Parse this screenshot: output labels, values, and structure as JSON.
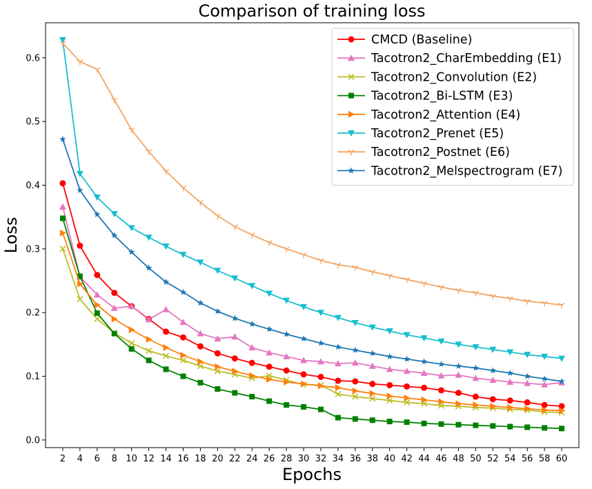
{
  "chart_data": {
    "type": "line",
    "title": "Comparison of training loss",
    "xlabel": "Epochs",
    "ylabel": "Loss",
    "xlim": [
      0,
      62
    ],
    "ylim": [
      -0.012,
      0.655
    ],
    "x_ticks": [
      2,
      4,
      6,
      8,
      10,
      12,
      14,
      16,
      18,
      20,
      22,
      24,
      26,
      28,
      30,
      32,
      34,
      36,
      38,
      40,
      42,
      44,
      46,
      48,
      50,
      52,
      54,
      56,
      58,
      60
    ],
    "y_ticks": [
      0.0,
      0.1,
      0.2,
      0.3,
      0.4,
      0.5,
      0.6
    ],
    "y_tick_labels": [
      "0.0",
      "0.1",
      "0.2",
      "0.3",
      "0.4",
      "0.5",
      "0.6"
    ],
    "legend_position": "top-right",
    "x": [
      2,
      4,
      6,
      8,
      10,
      12,
      14,
      16,
      18,
      20,
      22,
      24,
      26,
      28,
      30,
      32,
      34,
      36,
      38,
      40,
      42,
      44,
      46,
      48,
      50,
      52,
      54,
      56,
      58,
      60
    ],
    "series": [
      {
        "name": "CMCD (Baseline)",
        "color": "#ff0000",
        "marker": "circle",
        "values": [
          0.403,
          0.305,
          0.259,
          0.231,
          0.21,
          0.19,
          0.17,
          0.161,
          0.147,
          0.136,
          0.128,
          0.121,
          0.115,
          0.109,
          0.103,
          0.099,
          0.093,
          0.092,
          0.088,
          0.086,
          0.084,
          0.082,
          0.078,
          0.074,
          0.068,
          0.064,
          0.062,
          0.059,
          0.055,
          0.053
        ]
      },
      {
        "name": "Tacotron2_CharEmbedding (E1)",
        "color": "#e377c2",
        "marker": "triangle-up",
        "values": [
          0.366,
          0.256,
          0.228,
          0.207,
          0.21,
          0.189,
          0.205,
          0.185,
          0.167,
          0.159,
          0.162,
          0.145,
          0.137,
          0.131,
          0.125,
          0.123,
          0.12,
          0.121,
          0.116,
          0.111,
          0.108,
          0.105,
          0.101,
          0.102,
          0.097,
          0.094,
          0.091,
          0.089,
          0.087,
          0.09
        ]
      },
      {
        "name": "Tacotron2_Convolution (E2)",
        "color": "#bcbd22",
        "marker": "x",
        "values": [
          0.3,
          0.221,
          0.19,
          0.168,
          0.152,
          0.14,
          0.132,
          0.125,
          0.116,
          0.108,
          0.103,
          0.097,
          0.101,
          0.094,
          0.087,
          0.086,
          0.072,
          0.068,
          0.065,
          0.062,
          0.059,
          0.057,
          0.054,
          0.053,
          0.051,
          0.05,
          0.048,
          0.047,
          0.044,
          0.043
        ]
      },
      {
        "name": "Tacotron2_Bi-LSTM (E3)",
        "color": "#008000",
        "marker": "square",
        "values": [
          0.348,
          0.257,
          0.199,
          0.167,
          0.143,
          0.125,
          0.111,
          0.1,
          0.09,
          0.08,
          0.074,
          0.068,
          0.061,
          0.055,
          0.052,
          0.048,
          0.035,
          0.033,
          0.031,
          0.029,
          0.028,
          0.026,
          0.025,
          0.024,
          0.023,
          0.022,
          0.021,
          0.02,
          0.019,
          0.018
        ]
      },
      {
        "name": "Tacotron2_Attention (E4)",
        "color": "#ff7f0e",
        "marker": "triangle-right",
        "values": [
          0.325,
          0.245,
          0.212,
          0.19,
          0.173,
          0.158,
          0.145,
          0.133,
          0.123,
          0.115,
          0.108,
          0.101,
          0.095,
          0.091,
          0.088,
          0.085,
          0.082,
          0.077,
          0.073,
          0.069,
          0.066,
          0.063,
          0.06,
          0.057,
          0.055,
          0.053,
          0.051,
          0.049,
          0.047,
          0.046
        ]
      },
      {
        "name": "Tacotron2_Prenet (E5)",
        "color": "#17becf",
        "marker": "triangle-down",
        "values": [
          0.628,
          0.418,
          0.381,
          0.355,
          0.333,
          0.318,
          0.304,
          0.291,
          0.279,
          0.266,
          0.254,
          0.242,
          0.23,
          0.219,
          0.209,
          0.2,
          0.192,
          0.184,
          0.177,
          0.171,
          0.165,
          0.16,
          0.155,
          0.15,
          0.146,
          0.142,
          0.138,
          0.134,
          0.131,
          0.128
        ]
      },
      {
        "name": "Tacotron2_Postnet (E6)",
        "color": "#f4a460",
        "marker": "tri",
        "values": [
          0.623,
          0.594,
          0.582,
          0.534,
          0.487,
          0.453,
          0.422,
          0.396,
          0.373,
          0.352,
          0.335,
          0.322,
          0.31,
          0.3,
          0.291,
          0.282,
          0.275,
          0.271,
          0.264,
          0.258,
          0.252,
          0.246,
          0.24,
          0.235,
          0.231,
          0.226,
          0.222,
          0.218,
          0.215,
          0.212
        ]
      },
      {
        "name": "Tacotron2_Melspectrogram (E7)",
        "color": "#1f77b4",
        "marker": "star",
        "values": [
          0.472,
          0.392,
          0.354,
          0.321,
          0.295,
          0.27,
          0.248,
          0.232,
          0.215,
          0.202,
          0.191,
          0.182,
          0.174,
          0.166,
          0.159,
          0.152,
          0.146,
          0.141,
          0.136,
          0.131,
          0.127,
          0.123,
          0.119,
          0.116,
          0.113,
          0.109,
          0.105,
          0.1,
          0.096,
          0.092
        ]
      }
    ]
  }
}
